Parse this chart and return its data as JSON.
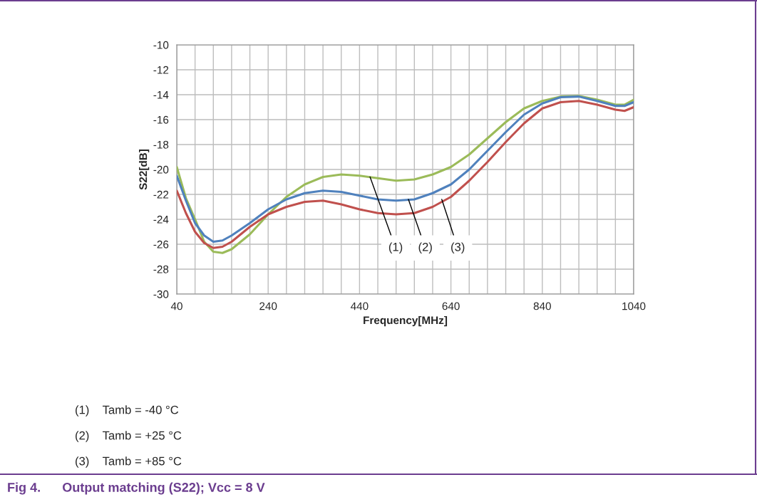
{
  "chart_data": {
    "type": "line",
    "xlabel": "Frequency[MHz]",
    "ylabel": "S22[dB]",
    "x": [
      40,
      60,
      80,
      100,
      120,
      140,
      160,
      200,
      240,
      280,
      320,
      360,
      400,
      440,
      480,
      520,
      560,
      600,
      640,
      680,
      720,
      760,
      800,
      840,
      880,
      920,
      960,
      1000,
      1020,
      1040
    ],
    "series": [
      {
        "color": "#9bbb59",
        "values": [
          -19.8,
          -22.3,
          -24.0,
          -25.8,
          -26.6,
          -26.7,
          -26.4,
          -25.2,
          -23.6,
          -22.2,
          -21.2,
          -20.6,
          -20.4,
          -20.5,
          -20.7,
          -20.9,
          -20.8,
          -20.4,
          -19.8,
          -18.8,
          -17.5,
          -16.2,
          -15.1,
          -14.5,
          -14.15,
          -14.1,
          -14.4,
          -14.8,
          -14.8,
          -14.4
        ]
      },
      {
        "color": "#4f81bd",
        "values": [
          -20.5,
          -22.5,
          -24.3,
          -25.3,
          -25.8,
          -25.7,
          -25.3,
          -24.3,
          -23.2,
          -22.4,
          -21.9,
          -21.7,
          -21.8,
          -22.1,
          -22.4,
          -22.5,
          -22.4,
          -21.9,
          -21.2,
          -20.0,
          -18.5,
          -17.0,
          -15.6,
          -14.7,
          -14.2,
          -14.15,
          -14.5,
          -14.9,
          -14.9,
          -14.6
        ]
      },
      {
        "color": "#c0504d",
        "values": [
          -21.7,
          -23.5,
          -25.0,
          -25.9,
          -26.3,
          -26.2,
          -25.8,
          -24.6,
          -23.6,
          -23.0,
          -22.6,
          -22.5,
          -22.8,
          -23.2,
          -23.5,
          -23.6,
          -23.5,
          -23.0,
          -22.2,
          -20.9,
          -19.4,
          -17.8,
          -16.3,
          -15.1,
          -14.6,
          -14.5,
          -14.8,
          -15.2,
          -15.3,
          -15.0
        ]
      }
    ],
    "xlim": [
      40,
      1040
    ],
    "xticks": [
      40,
      {
        "value": 80,
        "label": null
      },
      {
        "value": 120,
        "label": null
      },
      {
        "value": 160,
        "label": null
      },
      {
        "value": 200,
        "label": null
      },
      240,
      {
        "value": 280,
        "label": null
      },
      {
        "value": 320,
        "label": null
      },
      {
        "value": 360,
        "label": null
      },
      {
        "value": 400,
        "label": null
      },
      440,
      {
        "value": 480,
        "label": null
      },
      {
        "value": 520,
        "label": null
      },
      {
        "value": 560,
        "label": null
      },
      {
        "value": 600,
        "label": null
      },
      640,
      {
        "value": 680,
        "label": null
      },
      {
        "value": 720,
        "label": null
      },
      {
        "value": 760,
        "label": null
      },
      {
        "value": 800,
        "label": null
      },
      840,
      {
        "value": 880,
        "label": null
      },
      {
        "value": 920,
        "label": null
      },
      {
        "value": 960,
        "label": null
      },
      {
        "value": 1000,
        "label": null
      },
      1040
    ],
    "ylim": [
      -30,
      -10
    ],
    "yticks": [
      -30,
      -28,
      -26,
      -24,
      -22,
      -20,
      -18,
      -16,
      -14,
      -12,
      -10
    ],
    "grid": true,
    "marker": "none",
    "line_style": "solid",
    "annotations": [
      {
        "text": "(1)",
        "x": 463,
        "y": -20.6
      },
      {
        "text": "(2)",
        "x": 547,
        "y": -22.4
      },
      {
        "text": "(3)",
        "x": 620,
        "y": -22.4
      },
      "(1)    Tamb = -40 °C",
      "(2)    Tamb = +25 °C",
      "(3)    Tamb = +85 °C",
      "Fig 4.      Output matching (S22); Vcc = 8 V"
    ]
  }
}
